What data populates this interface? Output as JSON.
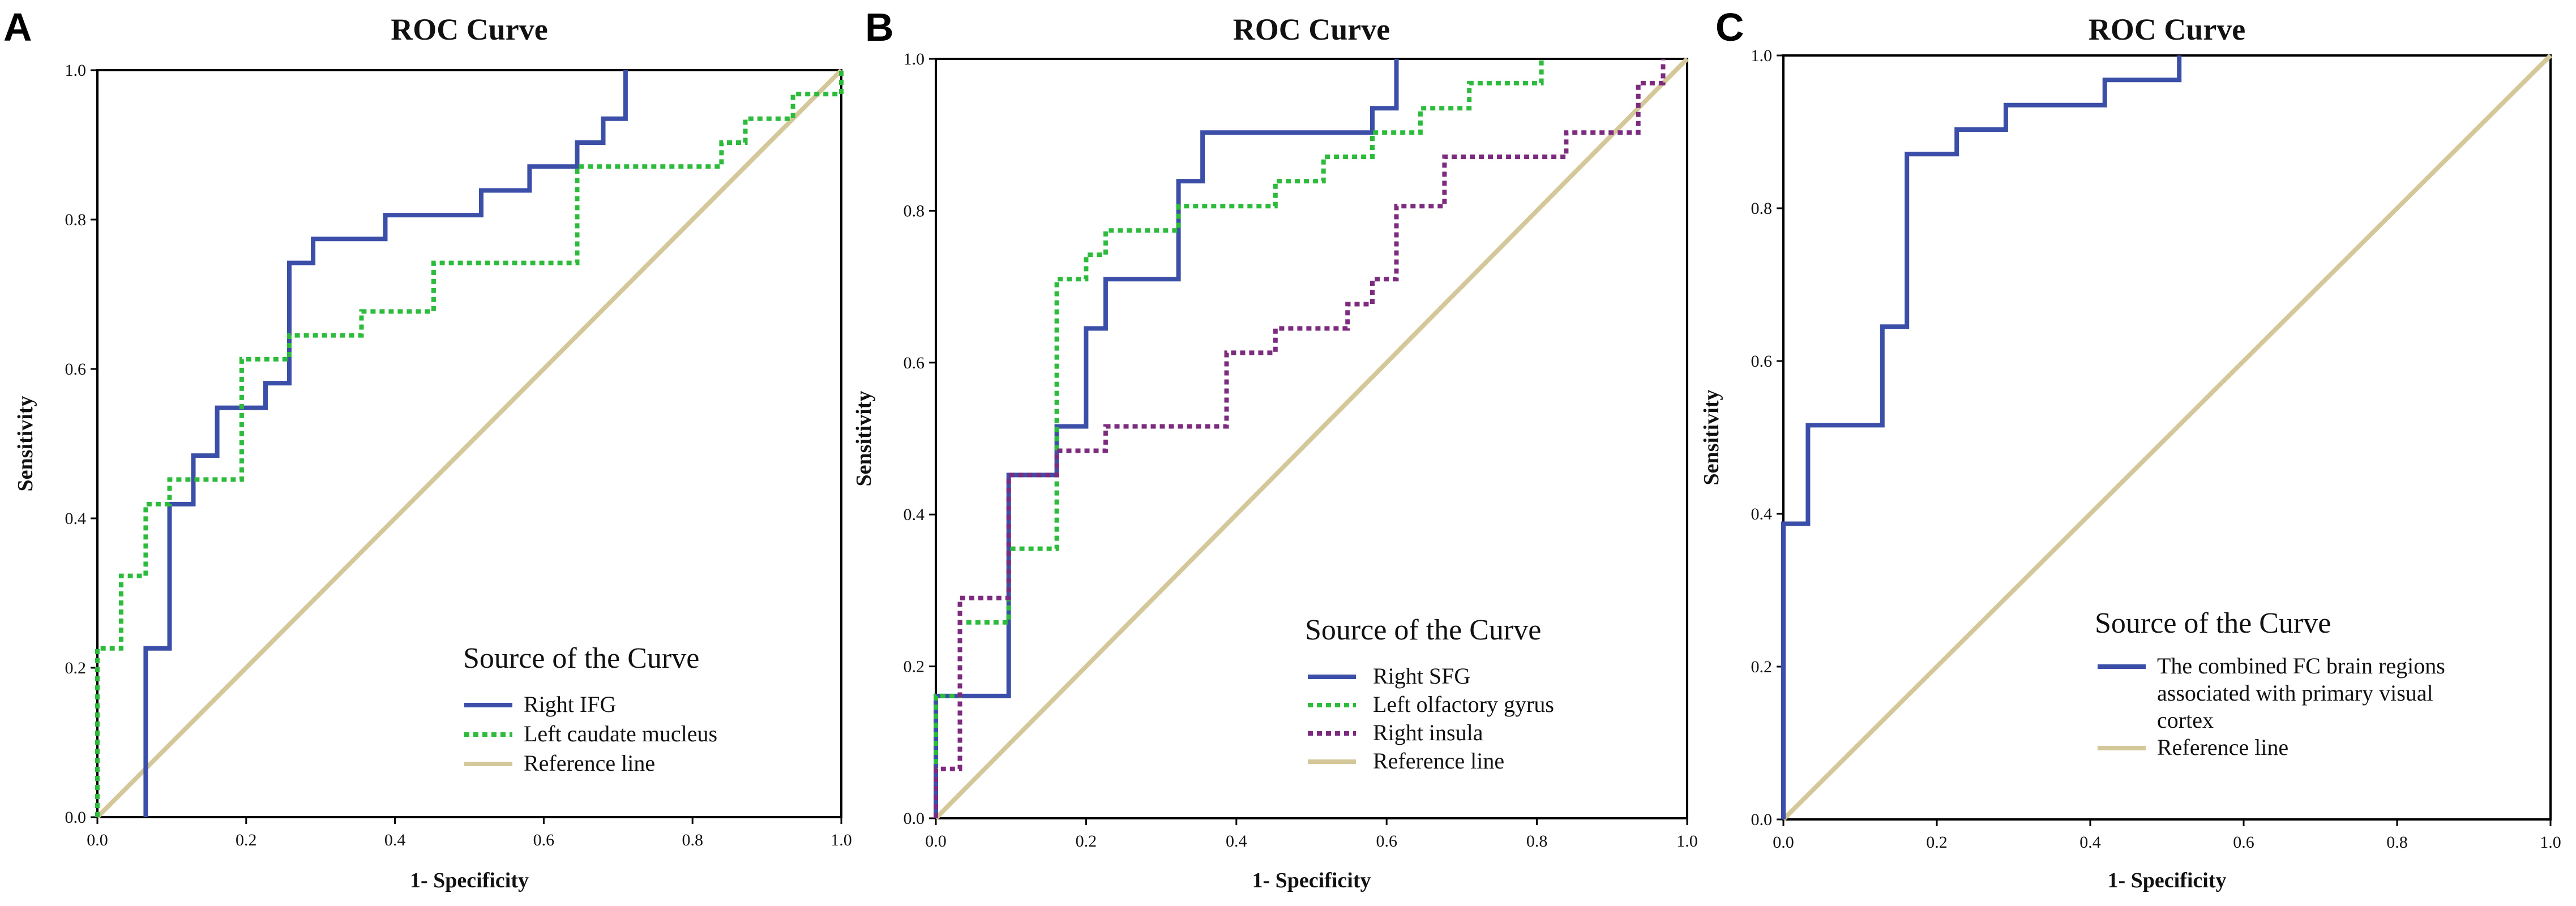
{
  "figure": {
    "description_panels": [
      "A",
      "B",
      "C"
    ]
  },
  "chart_data": [
    {
      "panel": "A",
      "type": "line",
      "title": "ROC Curve",
      "xlabel": "1- Specificity",
      "ylabel": "Sensitivity",
      "xlim": [
        0,
        1
      ],
      "ylim": [
        0,
        1
      ],
      "xticks": [
        "0.0",
        "0.2",
        "0.4",
        "0.6",
        "0.8",
        "1.0"
      ],
      "yticks": [
        "0.0",
        "0.2",
        "0.4",
        "0.6",
        "0.8",
        "1.0"
      ],
      "grid": false,
      "legend_title": "Source of the Curve",
      "legend_position": "bottom-right",
      "series": [
        {
          "name": "Right IFG",
          "color": "#3b4fa8",
          "style": "solid",
          "x": [
            0.065,
            0.065,
            0.097,
            0.097,
            0.129,
            0.129,
            0.161,
            0.161,
            0.226,
            0.226,
            0.258,
            0.258,
            0.29,
            0.29,
            0.387,
            0.387,
            0.516,
            0.516,
            0.581,
            0.581,
            0.645,
            0.645,
            0.68,
            0.68,
            0.71,
            0.71
          ],
          "y": [
            0.0,
            0.226,
            0.226,
            0.419,
            0.419,
            0.484,
            0.484,
            0.548,
            0.548,
            0.581,
            0.581,
            0.742,
            0.742,
            0.774,
            0.774,
            0.806,
            0.806,
            0.839,
            0.839,
            0.871,
            0.871,
            0.903,
            0.903,
            0.935,
            0.935,
            1.0
          ]
        },
        {
          "name": "Left caudate mucleus",
          "color": "#2dbb3c",
          "style": "dotted",
          "x": [
            0.0,
            0.0,
            0.032,
            0.032,
            0.065,
            0.065,
            0.097,
            0.097,
            0.194,
            0.194,
            0.258,
            0.258,
            0.29,
            0.29,
            0.355,
            0.355,
            0.452,
            0.452,
            0.645,
            0.645,
            0.806,
            0.806,
            0.839,
            0.839,
            0.871,
            0.871,
            0.935,
            0.935,
            1.0,
            1.0
          ],
          "y": [
            0.0,
            0.226,
            0.226,
            0.323,
            0.323,
            0.419,
            0.419,
            0.452,
            0.452,
            0.613,
            0.613,
            0.645,
            0.645,
            0.645,
            0.645,
            0.677,
            0.677,
            0.742,
            0.742,
            0.871,
            0.871,
            0.871,
            0.871,
            0.903,
            0.903,
            0.935,
            0.935,
            0.968,
            0.968,
            1.0
          ]
        },
        {
          "name": "Reference line",
          "color": "#d4c79a",
          "style": "solid",
          "x": [
            0,
            1
          ],
          "y": [
            0,
            1
          ]
        }
      ]
    },
    {
      "panel": "B",
      "type": "line",
      "title": "ROC Curve",
      "xlabel": "1- Specificity",
      "ylabel": "Sensitivity",
      "xlim": [
        0,
        1
      ],
      "ylim": [
        0,
        1
      ],
      "xticks": [
        "0.0",
        "0.2",
        "0.4",
        "0.6",
        "0.8",
        "1.0"
      ],
      "yticks": [
        "0.0",
        "0.2",
        "0.4",
        "0.6",
        "0.8",
        "1.0"
      ],
      "grid": false,
      "legend_title": "Source of the Curve",
      "legend_position": "bottom-right",
      "series": [
        {
          "name": "Right SFG",
          "color": "#3b4fa8",
          "style": "solid",
          "x": [
            0.0,
            0.0,
            0.097,
            0.097,
            0.161,
            0.161,
            0.2,
            0.2,
            0.226,
            0.226,
            0.323,
            0.323,
            0.355,
            0.355,
            0.581,
            0.581,
            0.613,
            0.613
          ],
          "y": [
            0.0,
            0.161,
            0.161,
            0.452,
            0.452,
            0.516,
            0.516,
            0.645,
            0.645,
            0.71,
            0.71,
            0.839,
            0.839,
            0.903,
            0.903,
            0.935,
            0.935,
            1.0
          ]
        },
        {
          "name": "Left olfactory gyrus",
          "color": "#2dbb3c",
          "style": "dotted",
          "x": [
            0.0,
            0.0,
            0.032,
            0.032,
            0.097,
            0.097,
            0.161,
            0.161,
            0.2,
            0.2,
            0.226,
            0.226,
            0.323,
            0.323,
            0.355,
            0.355,
            0.452,
            0.452,
            0.516,
            0.516,
            0.581,
            0.581,
            0.645,
            0.645,
            0.71,
            0.71,
            0.806,
            0.806
          ],
          "y": [
            0.0,
            0.161,
            0.161,
            0.258,
            0.258,
            0.355,
            0.355,
            0.71,
            0.71,
            0.742,
            0.742,
            0.774,
            0.774,
            0.806,
            0.806,
            0.806,
            0.806,
            0.839,
            0.839,
            0.871,
            0.871,
            0.903,
            0.903,
            0.935,
            0.935,
            0.968,
            0.968,
            1.0
          ]
        },
        {
          "name": "Right insula",
          "color": "#7c2b7e",
          "style": "dotted",
          "x": [
            0.0,
            0.0,
            0.032,
            0.032,
            0.097,
            0.097,
            0.161,
            0.161,
            0.226,
            0.226,
            0.387,
            0.387,
            0.452,
            0.452,
            0.548,
            0.548,
            0.581,
            0.581,
            0.613,
            0.613,
            0.677,
            0.677,
            0.839,
            0.839,
            0.935,
            0.935,
            0.968,
            0.968
          ],
          "y": [
            0.0,
            0.065,
            0.065,
            0.29,
            0.29,
            0.452,
            0.452,
            0.484,
            0.484,
            0.516,
            0.516,
            0.613,
            0.613,
            0.645,
            0.645,
            0.677,
            0.677,
            0.71,
            0.71,
            0.806,
            0.806,
            0.871,
            0.871,
            0.903,
            0.903,
            0.968,
            0.968,
            1.0
          ]
        },
        {
          "name": "Reference line",
          "color": "#d4c79a",
          "style": "solid",
          "x": [
            0,
            1
          ],
          "y": [
            0,
            1
          ]
        }
      ]
    },
    {
      "panel": "C",
      "type": "line",
      "title": "ROC Curve",
      "xlabel": "1- Specificity",
      "ylabel": "Sensitivity",
      "xlim": [
        0,
        1
      ],
      "ylim": [
        0,
        1
      ],
      "xticks": [
        "0.0",
        "0.2",
        "0.4",
        "0.6",
        "0.8",
        "1.0"
      ],
      "yticks": [
        "0.0",
        "0.2",
        "0.4",
        "0.6",
        "0.8",
        "1.0"
      ],
      "grid": false,
      "legend_title": "Source of the Curve",
      "legend_position": "bottom-right",
      "series": [
        {
          "name": "The combined FC brain regions associated with primary visual cortex",
          "legend_lines": [
            "The combined FC brain regions",
            "associated with primary visual",
            "cortex"
          ],
          "color": "#3b4fa8",
          "style": "solid",
          "x": [
            0.0,
            0.0,
            0.032,
            0.032,
            0.129,
            0.129,
            0.161,
            0.161,
            0.226,
            0.226,
            0.29,
            0.29,
            0.419,
            0.419,
            0.516,
            0.516
          ],
          "y": [
            0.0,
            0.387,
            0.387,
            0.516,
            0.516,
            0.645,
            0.645,
            0.871,
            0.871,
            0.903,
            0.903,
            0.935,
            0.935,
            0.968,
            0.968,
            1.0
          ]
        },
        {
          "name": "Reference line",
          "color": "#d4c79a",
          "style": "solid",
          "x": [
            0,
            1
          ],
          "y": [
            0,
            1
          ]
        }
      ]
    }
  ]
}
